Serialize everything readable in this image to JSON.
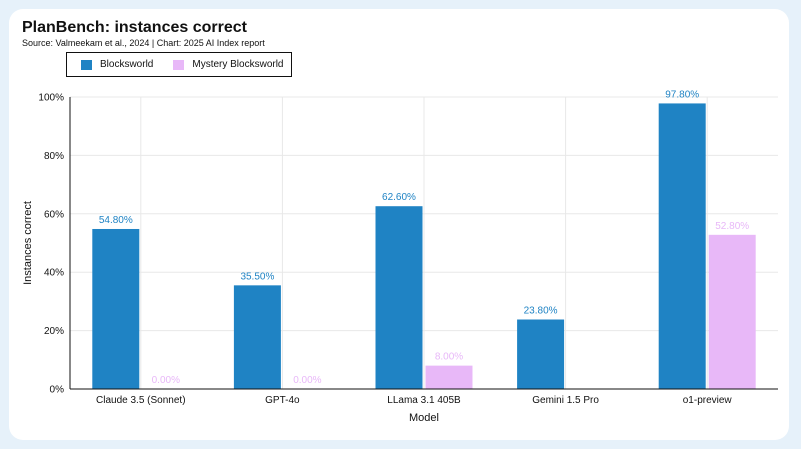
{
  "title": "PlanBench: instances correct",
  "source": "Source: Valmeekam et al., 2024 | Chart: 2025 AI Index report",
  "colors": {
    "background": "#e6f1fa",
    "card": "#ffffff",
    "blocksworld": "#1f83c4",
    "mystery": "#e8b8f8",
    "grid": "#e8e8e8"
  },
  "chart_data": {
    "type": "bar",
    "categories": [
      "Claude 3.5 (Sonnet)",
      "GPT-4o",
      "LLama 3.1 405B",
      "Gemini 1.5 Pro",
      "o1-preview"
    ],
    "series": [
      {
        "name": "Blocksworld",
        "values": [
          54.8,
          35.5,
          62.6,
          23.8,
          97.8
        ],
        "labels": [
          "54.80%",
          "35.50%",
          "62.60%",
          "23.80%",
          "97.80%"
        ]
      },
      {
        "name": "Mystery Blocksworld",
        "values": [
          0.0,
          0.0,
          8.0,
          null,
          52.8
        ],
        "labels": [
          "0.00%",
          "0.00%",
          "8.00%",
          "",
          "52.80%"
        ]
      }
    ],
    "xlabel": "Model",
    "ylabel": "Instances correct",
    "ylim": [
      0,
      100
    ],
    "yticks": [
      "0%",
      "20%",
      "40%",
      "60%",
      "80%",
      "100%"
    ],
    "ytick_values": [
      0,
      20,
      40,
      60,
      80,
      100
    ],
    "grid": true,
    "legend_position": "top-left"
  }
}
